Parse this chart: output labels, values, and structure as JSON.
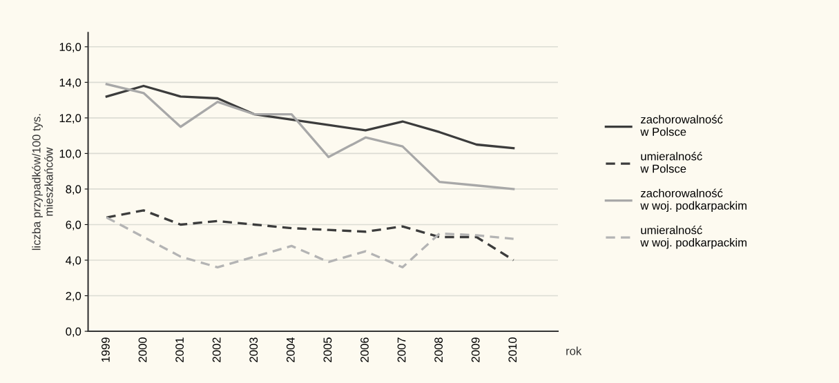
{
  "chart_data": {
    "type": "line",
    "ylabel": "liczba przypadków/100 tys.\nmieszkańców",
    "xlabel": "rok",
    "categories": [
      "1999",
      "2000",
      "2001",
      "2002",
      "2003",
      "2004",
      "2005",
      "2006",
      "2007",
      "2008",
      "2009",
      "2010"
    ],
    "series": [
      {
        "name": "zachorowalność\nw Polsce",
        "color": "#3c3c3c",
        "line_style": "solid",
        "values": [
          13.2,
          13.8,
          13.2,
          13.1,
          12.2,
          11.9,
          11.6,
          11.3,
          11.8,
          11.2,
          10.5,
          10.3
        ]
      },
      {
        "name": "umieralność\nw Polsce",
        "color": "#3c3c3c",
        "line_style": "dashed",
        "values": [
          6.4,
          6.8,
          6.0,
          6.2,
          6.0,
          5.8,
          5.7,
          5.6,
          5.9,
          5.3,
          5.3,
          4.0
        ]
      },
      {
        "name": "zachorowalność\nw woj. podkarpackim",
        "color": "#a8a8a8",
        "line_style": "solid",
        "values": [
          13.9,
          13.4,
          11.5,
          12.9,
          12.2,
          12.2,
          9.8,
          10.9,
          10.4,
          8.4,
          8.2,
          8.0
        ]
      },
      {
        "name": "umieralność\nw woj. podkarpackim",
        "color": "#b4b4b4",
        "line_style": "dashed",
        "values": [
          6.4,
          5.3,
          4.2,
          3.6,
          4.2,
          4.8,
          3.9,
          4.5,
          3.6,
          5.5,
          5.4,
          5.2
        ]
      }
    ],
    "ylim": [
      0,
      16.8
    ],
    "yticks": [
      {
        "value": 0,
        "label": "0,0"
      },
      {
        "value": 2,
        "label": "2,0"
      },
      {
        "value": 4,
        "label": "4,0"
      },
      {
        "value": 6,
        "label": "6,0"
      },
      {
        "value": 8,
        "label": "8,0"
      },
      {
        "value": 10,
        "label": "10,0"
      },
      {
        "value": 12,
        "label": "12,0"
      },
      {
        "value": 14,
        "label": "14,0"
      },
      {
        "value": 16,
        "label": "16,0"
      }
    ],
    "grid": "y",
    "legend": "right"
  }
}
